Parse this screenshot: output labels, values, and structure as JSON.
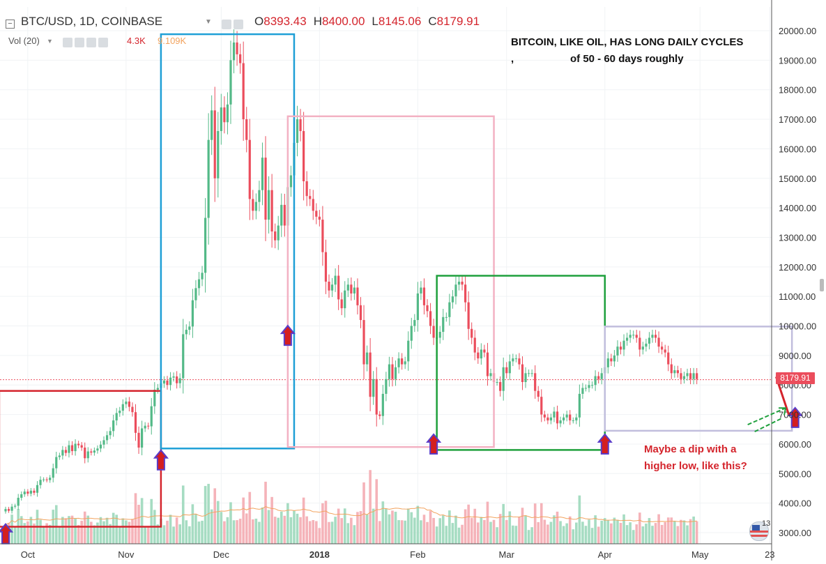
{
  "header": {
    "symbol": "BTC/USD, 1D, COINBASE",
    "o_label": "O",
    "o_value": "8393.43",
    "h_label": "H",
    "h_value": "8400.00",
    "l_label": "L",
    "l_value": "8145.06",
    "c_label": "C",
    "c_value": "8179.91"
  },
  "volume": {
    "label": "Vol (20)",
    "value": "4.3K",
    "ma_value": "9.109K"
  },
  "annotations": {
    "title_line1": "BITCOIN, LIKE OIL, HAS LONG DAILY CYCLES",
    "title_line2_prefix": ",",
    "title_line2": "of 50 - 60 days roughly",
    "dip_line1": "Maybe a dip with a",
    "dip_line2": "higher low, like this?"
  },
  "last_price_label": "8179.91",
  "badge_count": "13",
  "colors": {
    "up": "#53b987",
    "down": "#eb4d5c",
    "volume_up": "#a6dcc2",
    "volume_down": "#f5b3b9",
    "box_red": "#d4242c",
    "box_blue": "#1e9fd6",
    "box_pink": "#f3b1c3",
    "box_green": "#1ea03c",
    "box_lavender": "#c1bedd",
    "arrow_fill": "#d41f1f",
    "arrow_outline": "#5a3cc8"
  },
  "chart_data": {
    "type": "candlestick",
    "title": "BTC/USD, 1D, COINBASE",
    "y_ticks": [
      3000,
      4000,
      5000,
      6000,
      7000,
      8000,
      9000,
      10000,
      11000,
      12000,
      13000,
      14000,
      15000,
      16000,
      17000,
      18000,
      19000,
      20000
    ],
    "y_tick_labels": [
      "3000.00",
      "4000.00",
      "5000.00",
      "6000.00",
      "7000.00",
      "8000.00",
      "9000.00",
      "10000.00",
      "11000.00",
      "12000.00",
      "13000.00",
      "14000.00",
      "15000.00",
      "16000.00",
      "17000.00",
      "18000.00",
      "19000.00",
      "20000.00"
    ],
    "x_tick_labels": [
      {
        "label": "Oct",
        "date": "2017-10-01"
      },
      {
        "label": "Nov",
        "date": "2017-11-01"
      },
      {
        "label": "Dec",
        "date": "2017-12-01"
      },
      {
        "label": "2018",
        "date": "2018-01-01"
      },
      {
        "label": "Feb",
        "date": "2018-02-01"
      },
      {
        "label": "Mar",
        "date": "2018-03-01"
      },
      {
        "label": "Apr",
        "date": "2018-04-01"
      },
      {
        "label": "May",
        "date": "2018-05-01"
      },
      {
        "label": "23",
        "date": "2018-05-23"
      }
    ],
    "start_date": "2017-09-24",
    "daily_close": [
      3800,
      3740,
      3880,
      3910,
      4180,
      4300,
      4390,
      4320,
      4420,
      4350,
      4610,
      4790,
      4800,
      4780,
      4860,
      5180,
      5560,
      5610,
      5800,
      5700,
      5960,
      5760,
      6010,
      5960,
      5880,
      5520,
      5750,
      5710,
      5780,
      5850,
      5980,
      6130,
      6300,
      6440,
      6800,
      7050,
      7130,
      7350,
      7440,
      7260,
      7080,
      6380,
      5880,
      6530,
      6620,
      6600,
      7280,
      7840,
      7900,
      8050,
      8150,
      8000,
      8250,
      8290,
      8060,
      8230,
      9720,
      9870,
      9980,
      10870,
      11280,
      11580,
      11800,
      13660,
      16300,
      17300,
      15000,
      16600,
      17400,
      16900,
      17500,
      19000,
      19600,
      19200,
      18900,
      17000,
      16300,
      14300,
      13900,
      14200,
      14600,
      15700,
      13600,
      14600,
      13200,
      12900,
      13400,
      14100,
      13400,
      14700,
      15100,
      16200,
      17000,
      16600,
      14900,
      14400,
      14300,
      13900,
      13700,
      13600,
      12500,
      11500,
      11200,
      11400,
      11700,
      10900,
      10600,
      11200,
      11400,
      11100,
      11300,
      10700,
      10200,
      8700,
      9100,
      7600,
      8200,
      7000,
      6950,
      7700,
      8200,
      8700,
      8200,
      8600,
      8900,
      8700,
      8800,
      9500,
      10000,
      10200,
      11100,
      11300,
      10700,
      10500,
      10000,
      9600,
      9600,
      9800,
      10300,
      10300,
      10800,
      11000,
      11400,
      11500,
      11400,
      10800,
      9900,
      9600,
      9100,
      8900,
      9200,
      9100,
      8300,
      8400,
      8100,
      8100,
      7800,
      8600,
      8400,
      8800,
      8900,
      8900,
      8700,
      8100,
      8400,
      8400,
      8400,
      7800,
      7600,
      7000,
      6900,
      6800,
      6900,
      7100,
      6700,
      6800,
      6900,
      7000,
      6800,
      6800,
      6900,
      7700,
      7900,
      7900,
      8000,
      8000,
      8300,
      8200,
      8400,
      8600,
      8900,
      8800,
      9000,
      9300,
      9200,
      9500,
      9600,
      9700,
      9700,
      9600,
      9200,
      9300,
      9400,
      9600,
      9700,
      9600,
      9300,
      9200,
      9100,
      8700,
      8400,
      8500,
      8400,
      8200,
      8300,
      8400,
      8200,
      8400,
      8200
    ],
    "last_price": 8179.91,
    "date_range": [
      "2017-09-24",
      "2018-05-23"
    ]
  }
}
